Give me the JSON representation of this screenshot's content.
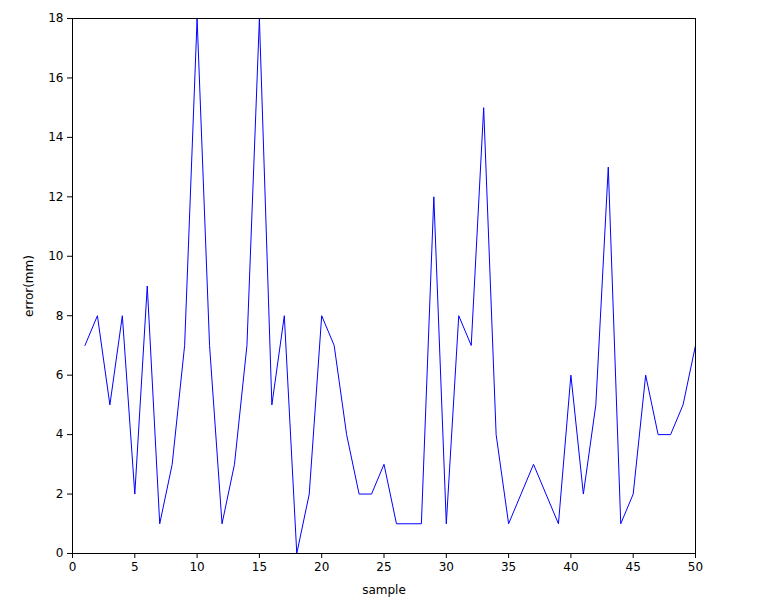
{
  "chart_data": {
    "type": "line",
    "xlabel": "sample",
    "ylabel": "error(mm)",
    "x": [
      1,
      2,
      3,
      4,
      5,
      6,
      7,
      8,
      9,
      10,
      11,
      12,
      13,
      14,
      15,
      16,
      17,
      18,
      19,
      20,
      21,
      22,
      23,
      24,
      25,
      26,
      27,
      28,
      29,
      30,
      31,
      32,
      33,
      34,
      35,
      36,
      37,
      38,
      39,
      40,
      41,
      42,
      43,
      44,
      45,
      46,
      47,
      48,
      49,
      50
    ],
    "values": [
      7,
      8,
      5,
      8,
      2,
      9,
      1,
      3,
      7,
      18,
      7,
      1,
      3,
      7,
      18,
      5,
      8,
      0,
      2,
      8,
      7,
      4,
      2,
      2,
      3,
      1,
      1,
      1,
      12,
      1,
      8,
      7,
      15,
      4,
      1,
      2,
      3,
      2,
      1,
      6,
      2,
      5,
      13,
      1,
      2,
      6,
      4,
      4,
      5,
      7
    ],
    "color": "#0000ff",
    "xlim": [
      0,
      50
    ],
    "ylim": [
      0,
      18
    ],
    "xticks": [
      0,
      5,
      10,
      15,
      20,
      25,
      30,
      35,
      40,
      45,
      50
    ],
    "yticks": [
      0,
      2,
      4,
      6,
      8,
      10,
      12,
      14,
      16,
      18
    ],
    "grid": false
  }
}
